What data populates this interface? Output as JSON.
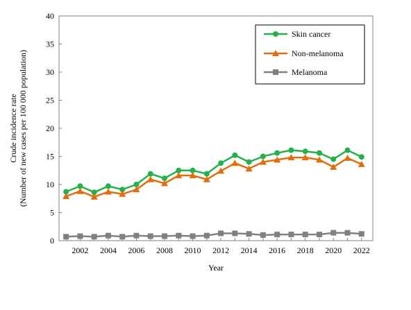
{
  "chart_data": {
    "type": "line",
    "title": "",
    "xlabel": "Year",
    "ylabel_line1": "Crude incidence rate",
    "ylabel_line2": "(Number of new cases per 100 000 population)",
    "xlim": [
      2000.5,
      2022.8
    ],
    "ylim": [
      0,
      40
    ],
    "yticks": [
      0,
      5,
      10,
      15,
      20,
      25,
      30,
      35,
      40
    ],
    "xticks": [
      2002,
      2004,
      2006,
      2008,
      2010,
      2012,
      2014,
      2016,
      2018,
      2020,
      2022
    ],
    "grid": false,
    "legend_position": "top-right",
    "x": [
      2001,
      2002,
      2003,
      2004,
      2005,
      2006,
      2007,
      2008,
      2009,
      2010,
      2011,
      2012,
      2013,
      2014,
      2015,
      2016,
      2017,
      2018,
      2019,
      2020,
      2021,
      2022
    ],
    "series": [
      {
        "name": "Skin cancer",
        "color": "#22b14c",
        "marker": "circle",
        "values": [
          8.7,
          9.7,
          8.6,
          9.7,
          9.1,
          10.0,
          11.9,
          11.1,
          12.5,
          12.5,
          11.9,
          13.8,
          15.2,
          14.0,
          15.0,
          15.6,
          16.1,
          15.9,
          15.6,
          14.5,
          16.1,
          14.9
        ]
      },
      {
        "name": "Non-melanoma",
        "color": "#e46c0a",
        "marker": "triangle",
        "values": [
          7.9,
          8.8,
          7.8,
          8.7,
          8.3,
          9.1,
          10.9,
          10.2,
          11.6,
          11.6,
          10.9,
          12.4,
          13.8,
          12.8,
          14.0,
          14.4,
          14.8,
          14.8,
          14.4,
          13.1,
          14.7,
          13.6
        ]
      },
      {
        "name": "Melanoma",
        "color": "#808080",
        "marker": "square",
        "values": [
          0.7,
          0.8,
          0.7,
          0.9,
          0.7,
          0.9,
          0.8,
          0.8,
          0.9,
          0.8,
          0.9,
          1.3,
          1.3,
          1.2,
          1.0,
          1.1,
          1.1,
          1.1,
          1.1,
          1.4,
          1.4,
          1.2
        ]
      }
    ]
  }
}
